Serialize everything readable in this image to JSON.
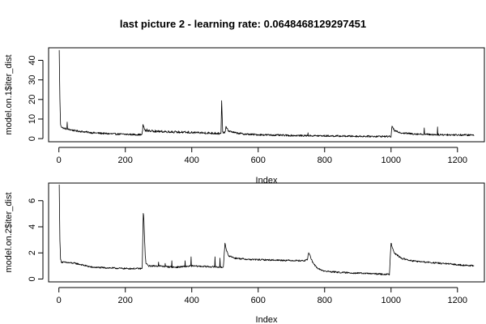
{
  "title": "last picture 2 - learning rate: 0.0648468129297451",
  "colors": {
    "line": "#000000",
    "background": "#ffffff"
  },
  "chart_data": [
    {
      "type": "line",
      "xlabel": "Index",
      "ylabel": "model.on.1$iter_dist",
      "xlim": [
        -31,
        1281
      ],
      "ylim": [
        -1.6,
        46.4
      ],
      "xticks": [
        0,
        200,
        400,
        600,
        800,
        1000,
        1200
      ],
      "yticks": [
        0,
        10,
        20,
        30,
        40
      ],
      "grid": false,
      "legend": "none",
      "series": [
        {
          "knots": [
            [
              1,
              45
            ],
            [
              3,
              20
            ],
            [
              5,
              7
            ],
            [
              8,
              6
            ],
            [
              14,
              5.3
            ],
            [
              22,
              5
            ],
            [
              50,
              4
            ],
            [
              100,
              3
            ],
            [
              150,
              2.5
            ],
            [
              200,
              2.2
            ],
            [
              250,
              2
            ],
            [
              254,
              6.5
            ],
            [
              260,
              4
            ],
            [
              300,
              3.6
            ],
            [
              350,
              3.3
            ],
            [
              400,
              3
            ],
            [
              450,
              2.8
            ],
            [
              488,
              2.5
            ],
            [
              490,
              19.5
            ],
            [
              493,
              3.2
            ],
            [
              500,
              3
            ],
            [
              503,
              6
            ],
            [
              510,
              4
            ],
            [
              530,
              3
            ],
            [
              560,
              2.3
            ],
            [
              600,
              2
            ],
            [
              700,
              1.6
            ],
            [
              800,
              1.4
            ],
            [
              900,
              1.2
            ],
            [
              1000,
              1.1
            ],
            [
              1003,
              6.5
            ],
            [
              1010,
              4
            ],
            [
              1030,
              3
            ],
            [
              1060,
              2.5
            ],
            [
              1100,
              2.2
            ],
            [
              1150,
              2
            ],
            [
              1200,
              1.9
            ],
            [
              1250,
              1.8
            ]
          ],
          "spikes": [
            [
              25,
              8.5
            ],
            [
              253,
              7.2
            ],
            [
              256,
              6
            ],
            [
              265,
              5
            ],
            [
              272,
              4.5
            ],
            [
              280,
              4.4
            ],
            [
              290,
              4.4
            ],
            [
              300,
              4.2
            ],
            [
              310,
              4.2
            ],
            [
              320,
              4.1
            ],
            [
              330,
              4
            ],
            [
              340,
              4
            ],
            [
              350,
              4
            ],
            [
              360,
              3.9
            ],
            [
              370,
              3.8
            ],
            [
              380,
              3.8
            ],
            [
              390,
              3.8
            ],
            [
              400,
              3.6
            ],
            [
              410,
              3.6
            ],
            [
              420,
              3.5
            ],
            [
              430,
              3.5
            ],
            [
              440,
              3.4
            ],
            [
              450,
              3.4
            ],
            [
              460,
              3.3
            ],
            [
              470,
              3.3
            ],
            [
              480,
              3.2
            ],
            [
              750,
              3
            ],
            [
              1100,
              5.5
            ],
            [
              1140,
              6
            ],
            [
              1170,
              2.4
            ]
          ],
          "noise_amplitude": 0.9
        }
      ]
    },
    {
      "type": "line",
      "xlabel": "Index",
      "ylabel": "model.on.2$iter_dist",
      "xlim": [
        -31,
        1281
      ],
      "ylim": [
        -0.22,
        7.35
      ],
      "xticks": [
        0,
        200,
        400,
        600,
        800,
        1000,
        1200
      ],
      "yticks": [
        0,
        2,
        4,
        6
      ],
      "grid": false,
      "legend": "none",
      "series": [
        {
          "knots": [
            [
              1,
              7.2
            ],
            [
              3,
              3
            ],
            [
              5,
              1.5
            ],
            [
              8,
              1.3
            ],
            [
              50,
              1.2
            ],
            [
              100,
              0.9
            ],
            [
              150,
              0.85
            ],
            [
              200,
              0.8
            ],
            [
              250,
              0.8
            ],
            [
              251,
              1
            ],
            [
              254,
              5
            ],
            [
              256,
              4.5
            ],
            [
              258,
              3
            ],
            [
              260,
              1.8
            ],
            [
              262,
              1.2
            ],
            [
              270,
              1
            ],
            [
              300,
              1
            ],
            [
              350,
              0.9
            ],
            [
              400,
              1
            ],
            [
              450,
              0.95
            ],
            [
              495,
              0.9
            ],
            [
              500,
              2.8
            ],
            [
              503,
              2.3
            ],
            [
              510,
              1.8
            ],
            [
              530,
              1.6
            ],
            [
              570,
              1.5
            ],
            [
              650,
              1.45
            ],
            [
              740,
              1.4
            ],
            [
              748,
              1.5
            ],
            [
              752,
              2
            ],
            [
              756,
              1.8
            ],
            [
              765,
              1.2
            ],
            [
              780,
              0.8
            ],
            [
              800,
              0.6
            ],
            [
              850,
              0.5
            ],
            [
              900,
              0.45
            ],
            [
              950,
              0.4
            ],
            [
              995,
              0.35
            ],
            [
              1000,
              2.8
            ],
            [
              1003,
              2.5
            ],
            [
              1010,
              2
            ],
            [
              1030,
              1.6
            ],
            [
              1060,
              1.4
            ],
            [
              1100,
              1.3
            ],
            [
              1150,
              1.2
            ],
            [
              1200,
              1.1
            ],
            [
              1250,
              1
            ]
          ],
          "spikes": [
            [
              255,
              4.9
            ],
            [
              300,
              1.3
            ],
            [
              320,
              1.2
            ],
            [
              340,
              1.4
            ],
            [
              380,
              1.4
            ],
            [
              398,
              1.7
            ],
            [
              470,
              1.7
            ],
            [
              485,
              1.6
            ]
          ],
          "noise_amplitude": 0.12
        }
      ]
    }
  ]
}
